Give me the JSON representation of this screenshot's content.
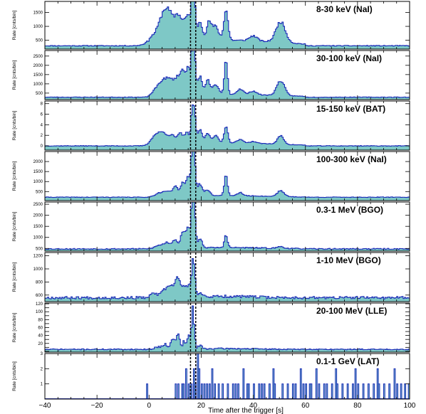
{
  "chart_data": {
    "type": "area",
    "layout": "8 vertically stacked panels sharing x axis",
    "xlabel": "Time after the trigger [s]",
    "xlim": [
      -40,
      100
    ],
    "xticks": [
      -40,
      -20,
      0,
      20,
      40,
      60,
      80,
      100
    ],
    "xtick_labels": [
      "−40",
      "−20",
      "0",
      "20",
      "40",
      "60",
      "80",
      "100"
    ],
    "ylabel": "Rate [cnts/bin]",
    "bin_width": 0.5,
    "dashed_lines_x": [
      15.9,
      17.9
    ],
    "colors": {
      "fill": "#7ec8c6",
      "line": "#1a2ab8",
      "dashed": "#000000"
    },
    "panels": [
      {
        "title": "8-30 keV (NaI)",
        "ylim": [
          180,
          1900
        ],
        "yticks": [
          500,
          1000,
          1500
        ],
        "baseline": 300,
        "peaks": [
          [
            2,
            270,
            2.5
          ],
          [
            5,
            650,
            1.6
          ],
          [
            7,
            780,
            1.4
          ],
          [
            9,
            560,
            1.2
          ],
          [
            11,
            800,
            1.0
          ],
          [
            13,
            650,
            1.0
          ],
          [
            15,
            850,
            0.9
          ],
          [
            16.6,
            1400,
            0.5
          ],
          [
            17.4,
            1180,
            0.5
          ],
          [
            19.5,
            700,
            1.0
          ],
          [
            23,
            650,
            0.9
          ],
          [
            25.5,
            500,
            1.2
          ],
          [
            29.5,
            1100,
            0.8
          ],
          [
            40,
            180,
            1.5
          ],
          [
            50.5,
            750,
            1.8
          ]
        ],
        "tail": [
          30,
          200,
          20
        ],
        "noise": 0.05,
        "seed": 11
      },
      {
        "title": "30-100 keV (NaI)",
        "ylim": [
          150,
          2800
        ],
        "yticks": [
          500,
          1000,
          1500,
          2000,
          2500
        ],
        "baseline": 280,
        "peaks": [
          [
            3,
            380,
            1.6
          ],
          [
            5,
            500,
            1.3
          ],
          [
            7,
            700,
            1.2
          ],
          [
            9,
            650,
            1.0
          ],
          [
            11,
            900,
            0.9
          ],
          [
            13,
            1300,
            0.9
          ],
          [
            15,
            1500,
            0.7
          ],
          [
            16.6,
            2450,
            0.5
          ],
          [
            17.4,
            1900,
            0.5
          ],
          [
            19.5,
            1000,
            0.9
          ],
          [
            22.5,
            800,
            0.8
          ],
          [
            25.5,
            500,
            1.2
          ],
          [
            29.5,
            1800,
            0.6
          ],
          [
            35,
            300,
            1.2
          ],
          [
            40,
            200,
            1.3
          ],
          [
            50.5,
            800,
            1.5
          ]
        ],
        "tail": [
          30,
          150,
          20
        ],
        "noise": 0.05,
        "seed": 23
      },
      {
        "title": "15-150 keV (BAT)",
        "ylim": [
          -0.8,
          8.5
        ],
        "yticks": [
          0,
          2,
          4,
          6,
          8
        ],
        "baseline": 0,
        "peaks": [
          [
            3,
            2.0,
            2.0
          ],
          [
            6,
            1.5,
            1.5
          ],
          [
            9,
            1.5,
            1.2
          ],
          [
            12,
            2.0,
            1.0
          ],
          [
            14.5,
            2.2,
            0.8
          ],
          [
            16.6,
            6.4,
            0.5
          ],
          [
            17.5,
            4.4,
            0.5
          ],
          [
            19.5,
            2.5,
            0.9
          ],
          [
            22.5,
            1.8,
            0.9
          ],
          [
            25.5,
            1.4,
            1.0
          ],
          [
            29.5,
            3.2,
            0.7
          ],
          [
            35,
            0.6,
            1.2
          ],
          [
            40,
            0.3,
            1.2
          ],
          [
            50.5,
            1.6,
            1.2
          ]
        ],
        "tail": [
          30,
          0.6,
          18
        ],
        "noise": 0.06,
        "seed": 37
      },
      {
        "title": "100-300 keV (NaI)",
        "ylim": [
          50,
          2500
        ],
        "yticks": [
          500,
          1000,
          1500,
          2000
        ],
        "baseline": 220,
        "peaks": [
          [
            4,
            200,
            1.6
          ],
          [
            7,
            250,
            1.2
          ],
          [
            10,
            500,
            1.0
          ],
          [
            13,
            700,
            0.9
          ],
          [
            15,
            1000,
            0.7
          ],
          [
            16.6,
            2150,
            0.5
          ],
          [
            17.4,
            1500,
            0.5
          ],
          [
            19.5,
            600,
            0.9
          ],
          [
            22.5,
            300,
            1.0
          ],
          [
            29.5,
            1100,
            0.6
          ],
          [
            35,
            150,
            1.0
          ],
          [
            50.5,
            300,
            1.3
          ]
        ],
        "tail": [
          30,
          80,
          15
        ],
        "noise": 0.06,
        "seed": 41
      },
      {
        "title": "0.3-1 MeV (BGO)",
        "ylim": [
          380,
          2600
        ],
        "yticks": [
          500,
          1000,
          1500,
          2000,
          2500
        ],
        "baseline": 480,
        "peaks": [
          [
            4,
            150,
            1.6
          ],
          [
            7,
            250,
            1.2
          ],
          [
            10,
            400,
            1.0
          ],
          [
            13,
            800,
            0.8
          ],
          [
            15,
            900,
            0.7
          ],
          [
            16.6,
            1950,
            0.5
          ],
          [
            17.4,
            1400,
            0.5
          ],
          [
            19.5,
            400,
            0.9
          ],
          [
            29.5,
            550,
            0.6
          ],
          [
            50.5,
            80,
            1.3
          ]
        ],
        "tail": [
          30,
          60,
          15
        ],
        "noise": 0.05,
        "seed": 53
      },
      {
        "title": "1-10 MeV (BGO)",
        "ylim": [
          500,
          1250
        ],
        "yticks": [
          600,
          800,
          1000,
          1200
        ],
        "baseline": 560,
        "peaks": [
          [
            2,
            70,
            1.2
          ],
          [
            6,
            120,
            1.2
          ],
          [
            8.5,
            180,
            1.0
          ],
          [
            11,
            320,
            0.9
          ],
          [
            13.5,
            170,
            0.8
          ],
          [
            15.3,
            200,
            0.6
          ],
          [
            16.7,
            520,
            0.4
          ],
          [
            17.5,
            340,
            0.4
          ],
          [
            20,
            60,
            0.9
          ]
        ],
        "tail": [
          30,
          20,
          10
        ],
        "noise": 0.035,
        "seed": 67
      },
      {
        "title": "20-100 MeV (LLE)",
        "ylim": [
          -2,
          122
        ],
        "yticks": [
          0,
          10,
          20,
          30,
          40,
          50,
          60,
          70,
          80,
          90,
          100,
          110,
          120
        ],
        "ytick_labels": [
          "",
          "",
          "20",
          "",
          "40",
          "",
          "60",
          "",
          "80",
          "",
          "100",
          "",
          "120"
        ],
        "baseline": 5,
        "peaks": [
          [
            3,
            6,
            1.0
          ],
          [
            6,
            15,
            1.0
          ],
          [
            9,
            20,
            0.8
          ],
          [
            11,
            35,
            0.8
          ],
          [
            13.5,
            18,
            0.6
          ],
          [
            15.3,
            40,
            0.5
          ],
          [
            16.6,
            100,
            0.3
          ],
          [
            17.4,
            58,
            0.3
          ],
          [
            19.5,
            8,
            0.8
          ]
        ],
        "tail": [
          30,
          2,
          10
        ],
        "noise": 0.25,
        "seed": 71
      },
      {
        "title": "0.1-1 GeV (LAT)",
        "ylim": [
          0,
          3
        ],
        "yticks": [
          0,
          1,
          2,
          3
        ],
        "ytick_labels": [
          "",
          "1",
          "2",
          "3"
        ],
        "type": "counts",
        "events": [
          [
            -1,
            1
          ],
          [
            10,
            1
          ],
          [
            11,
            1
          ],
          [
            12.5,
            1
          ],
          [
            13,
            1
          ],
          [
            14,
            2
          ],
          [
            15,
            1
          ],
          [
            16,
            1
          ],
          [
            17,
            2
          ],
          [
            17.5,
            1
          ],
          [
            18.5,
            3
          ],
          [
            19,
            2
          ],
          [
            20,
            1
          ],
          [
            21,
            1
          ],
          [
            22,
            1
          ],
          [
            23,
            1
          ],
          [
            24,
            2
          ],
          [
            25,
            1
          ],
          [
            26.5,
            1
          ],
          [
            28,
            1
          ],
          [
            30,
            1
          ],
          [
            32,
            1
          ],
          [
            33,
            1
          ],
          [
            34,
            1
          ],
          [
            36,
            2
          ],
          [
            37.5,
            1
          ],
          [
            38,
            1
          ],
          [
            40,
            1
          ],
          [
            42,
            1
          ],
          [
            43,
            1
          ],
          [
            44,
            1
          ],
          [
            46,
            1
          ],
          [
            47.5,
            2
          ],
          [
            48,
            1
          ],
          [
            51,
            1
          ],
          [
            53,
            1
          ],
          [
            55,
            1
          ],
          [
            56,
            1
          ],
          [
            58,
            2
          ],
          [
            59,
            1
          ],
          [
            60,
            1
          ],
          [
            61.5,
            1
          ],
          [
            62,
            1
          ],
          [
            64,
            2
          ],
          [
            65,
            1
          ],
          [
            67,
            1
          ],
          [
            68,
            1
          ],
          [
            70,
            1
          ],
          [
            71.5,
            2
          ],
          [
            72,
            1
          ],
          [
            74,
            1
          ],
          [
            76,
            1
          ],
          [
            78,
            1
          ],
          [
            79,
            2
          ],
          [
            80,
            1
          ],
          [
            82,
            1
          ],
          [
            84,
            1
          ],
          [
            86,
            1
          ],
          [
            87.5,
            2
          ],
          [
            88,
            1
          ],
          [
            90,
            1
          ],
          [
            92,
            1
          ],
          [
            94,
            2
          ],
          [
            95,
            1
          ],
          [
            96.5,
            1
          ],
          [
            98,
            1
          ],
          [
            99.5,
            1
          ]
        ]
      }
    ]
  }
}
